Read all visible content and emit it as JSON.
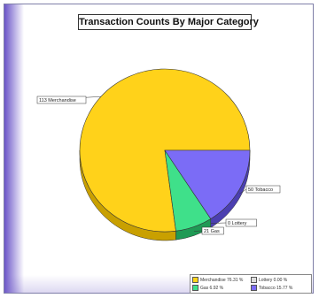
{
  "chart_data": {
    "type": "pie",
    "title": "Transaction Counts By Major Category",
    "slices": [
      {
        "name": "Merchandise",
        "value": 76.31,
        "label": "113 Merchandise",
        "color": "#ffd21a",
        "side": "#c9a000",
        "legend": "Merchandise 76.31 %"
      },
      {
        "name": "Tobacco",
        "value": 15.77,
        "label": "50 Tobacco",
        "color": "#7b6cf6",
        "side": "#4b3fb0",
        "legend": "Tobacco 15.77 %"
      },
      {
        "name": "Lottery",
        "value": 0.0,
        "label": "0 Lottery",
        "color": "#dddddd",
        "side": "#aaaaaa",
        "legend": "Lottery 0.00 %"
      },
      {
        "name": "Gas",
        "value": 6.92,
        "label": "21 Gas",
        "color": "#3fe08a",
        "side": "#1f9a55",
        "legend": "Gas 6.92 %"
      }
    ]
  }
}
